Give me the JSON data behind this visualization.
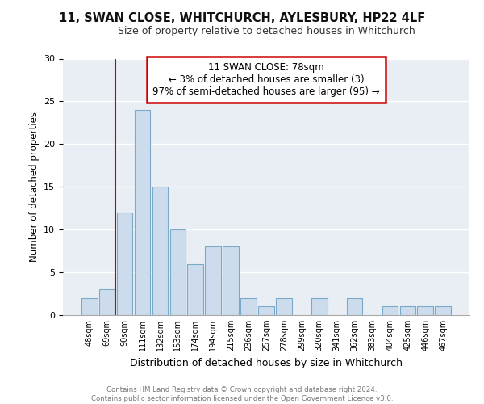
{
  "title": "11, SWAN CLOSE, WHITCHURCH, AYLESBURY, HP22 4LF",
  "subtitle": "Size of property relative to detached houses in Whitchurch",
  "xlabel": "Distribution of detached houses by size in Whitchurch",
  "ylabel": "Number of detached properties",
  "bar_labels": [
    "48sqm",
    "69sqm",
    "90sqm",
    "111sqm",
    "132sqm",
    "153sqm",
    "174sqm",
    "194sqm",
    "215sqm",
    "236sqm",
    "257sqm",
    "278sqm",
    "299sqm",
    "320sqm",
    "341sqm",
    "362sqm",
    "383sqm",
    "404sqm",
    "425sqm",
    "446sqm",
    "467sqm"
  ],
  "bar_values": [
    2,
    3,
    12,
    24,
    15,
    10,
    6,
    8,
    8,
    2,
    1,
    2,
    0,
    2,
    0,
    2,
    0,
    1,
    1,
    1,
    1
  ],
  "bar_color": "#ccdcec",
  "bar_edge_color": "#7aaac8",
  "ylim": [
    0,
    30
  ],
  "yticks": [
    0,
    5,
    10,
    15,
    20,
    25,
    30
  ],
  "vline_color": "#cc0000",
  "annotation_title": "11 SWAN CLOSE: 78sqm",
  "annotation_line1": "← 3% of detached houses are smaller (3)",
  "annotation_line2": "97% of semi-detached houses are larger (95) →",
  "annotation_box_color": "#ffffff",
  "annotation_box_edge": "#cc0000",
  "footer1": "Contains HM Land Registry data © Crown copyright and database right 2024.",
  "footer2": "Contains public sector information licensed under the Open Government Licence v3.0.",
  "bg_color": "#ffffff",
  "plot_bg_color": "#e8eef4",
  "grid_color": "#ffffff"
}
